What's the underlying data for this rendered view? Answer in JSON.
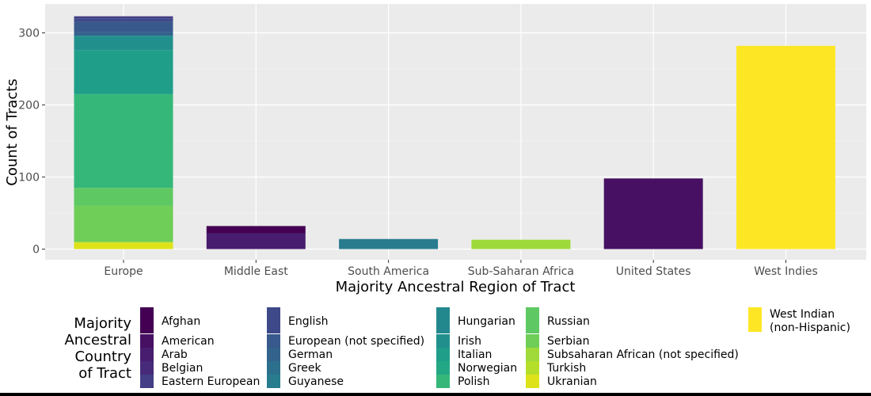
{
  "chart_data": {
    "type": "bar",
    "stacked": true,
    "title": "",
    "xlabel": "Majority Ancestral Region of Tract",
    "ylabel": "Count of Tracts",
    "ylim": [
      0,
      335
    ],
    "y_ticks": [
      0,
      100,
      200,
      300
    ],
    "categories": [
      "Europe",
      "Middle East",
      "South America",
      "Sub-Saharan Africa",
      "United States",
      "West Indies"
    ],
    "grid": true,
    "legend_position": "bottom",
    "legend_title": [
      "Majority",
      "Ancestral",
      "Country",
      "of Tract"
    ],
    "series": [
      {
        "name": "Afghan",
        "color": "#440154",
        "values": [
          0,
          10,
          0,
          0,
          0,
          0
        ]
      },
      {
        "name": "American",
        "color": "#471063",
        "values": [
          0,
          0,
          0,
          0,
          98,
          0
        ]
      },
      {
        "name": "Arab",
        "color": "#481d6f",
        "values": [
          0,
          22,
          0,
          0,
          0,
          0
        ]
      },
      {
        "name": "Belgian",
        "color": "#472a7a",
        "values": [
          0,
          0,
          0,
          0,
          0,
          0
        ]
      },
      {
        "name": "Eastern European",
        "color": "#433e85",
        "values": [
          3,
          0,
          0,
          0,
          0,
          0
        ]
      },
      {
        "name": "English",
        "color": "#3e4989",
        "values": [
          5,
          0,
          0,
          0,
          0,
          0
        ]
      },
      {
        "name": "European (not specified)",
        "color": "#38598c",
        "values": [
          14,
          0,
          0,
          0,
          0,
          0
        ]
      },
      {
        "name": "German",
        "color": "#33638d",
        "values": [
          5,
          0,
          0,
          0,
          0,
          0
        ]
      },
      {
        "name": "Greek",
        "color": "#2d708e",
        "values": [
          0,
          0,
          0,
          0,
          0,
          0
        ]
      },
      {
        "name": "Guyanese",
        "color": "#287c8e",
        "values": [
          0,
          0,
          14,
          0,
          0,
          0
        ]
      },
      {
        "name": "Hungarian",
        "color": "#23888e",
        "values": [
          0,
          0,
          0,
          0,
          0,
          0
        ]
      },
      {
        "name": "Irish",
        "color": "#21908d",
        "values": [
          20,
          0,
          0,
          0,
          0,
          0
        ]
      },
      {
        "name": "Italian",
        "color": "#1f9e89",
        "values": [
          61,
          0,
          0,
          0,
          0,
          0
        ]
      },
      {
        "name": "Norwegian",
        "color": "#22a884",
        "values": [
          0,
          0,
          0,
          0,
          0,
          0
        ]
      },
      {
        "name": "Polish",
        "color": "#35b779",
        "values": [
          130,
          0,
          0,
          0,
          0,
          0
        ]
      },
      {
        "name": "Russian",
        "color": "#5ec962",
        "values": [
          25,
          0,
          0,
          0,
          0,
          0
        ]
      },
      {
        "name": "Serbian",
        "color": "#6ece58",
        "values": [
          50,
          0,
          0,
          0,
          0,
          0
        ]
      },
      {
        "name": "Subsaharan African (not specified)",
        "color": "#9fda3a",
        "values": [
          0,
          0,
          0,
          13,
          0,
          0
        ]
      },
      {
        "name": "Turkish",
        "color": "#b5de2b",
        "values": [
          1,
          0,
          0,
          0,
          0,
          0
        ]
      },
      {
        "name": "Ukranian",
        "color": "#dde318",
        "values": [
          9,
          0,
          0,
          0,
          0,
          0
        ]
      },
      {
        "name": "West Indian (non-Hispanic)",
        "label_lines": [
          "West Indian",
          "(non-Hispanic)"
        ],
        "color": "#fde725",
        "values": [
          0,
          0,
          0,
          0,
          0,
          282
        ]
      }
    ]
  }
}
